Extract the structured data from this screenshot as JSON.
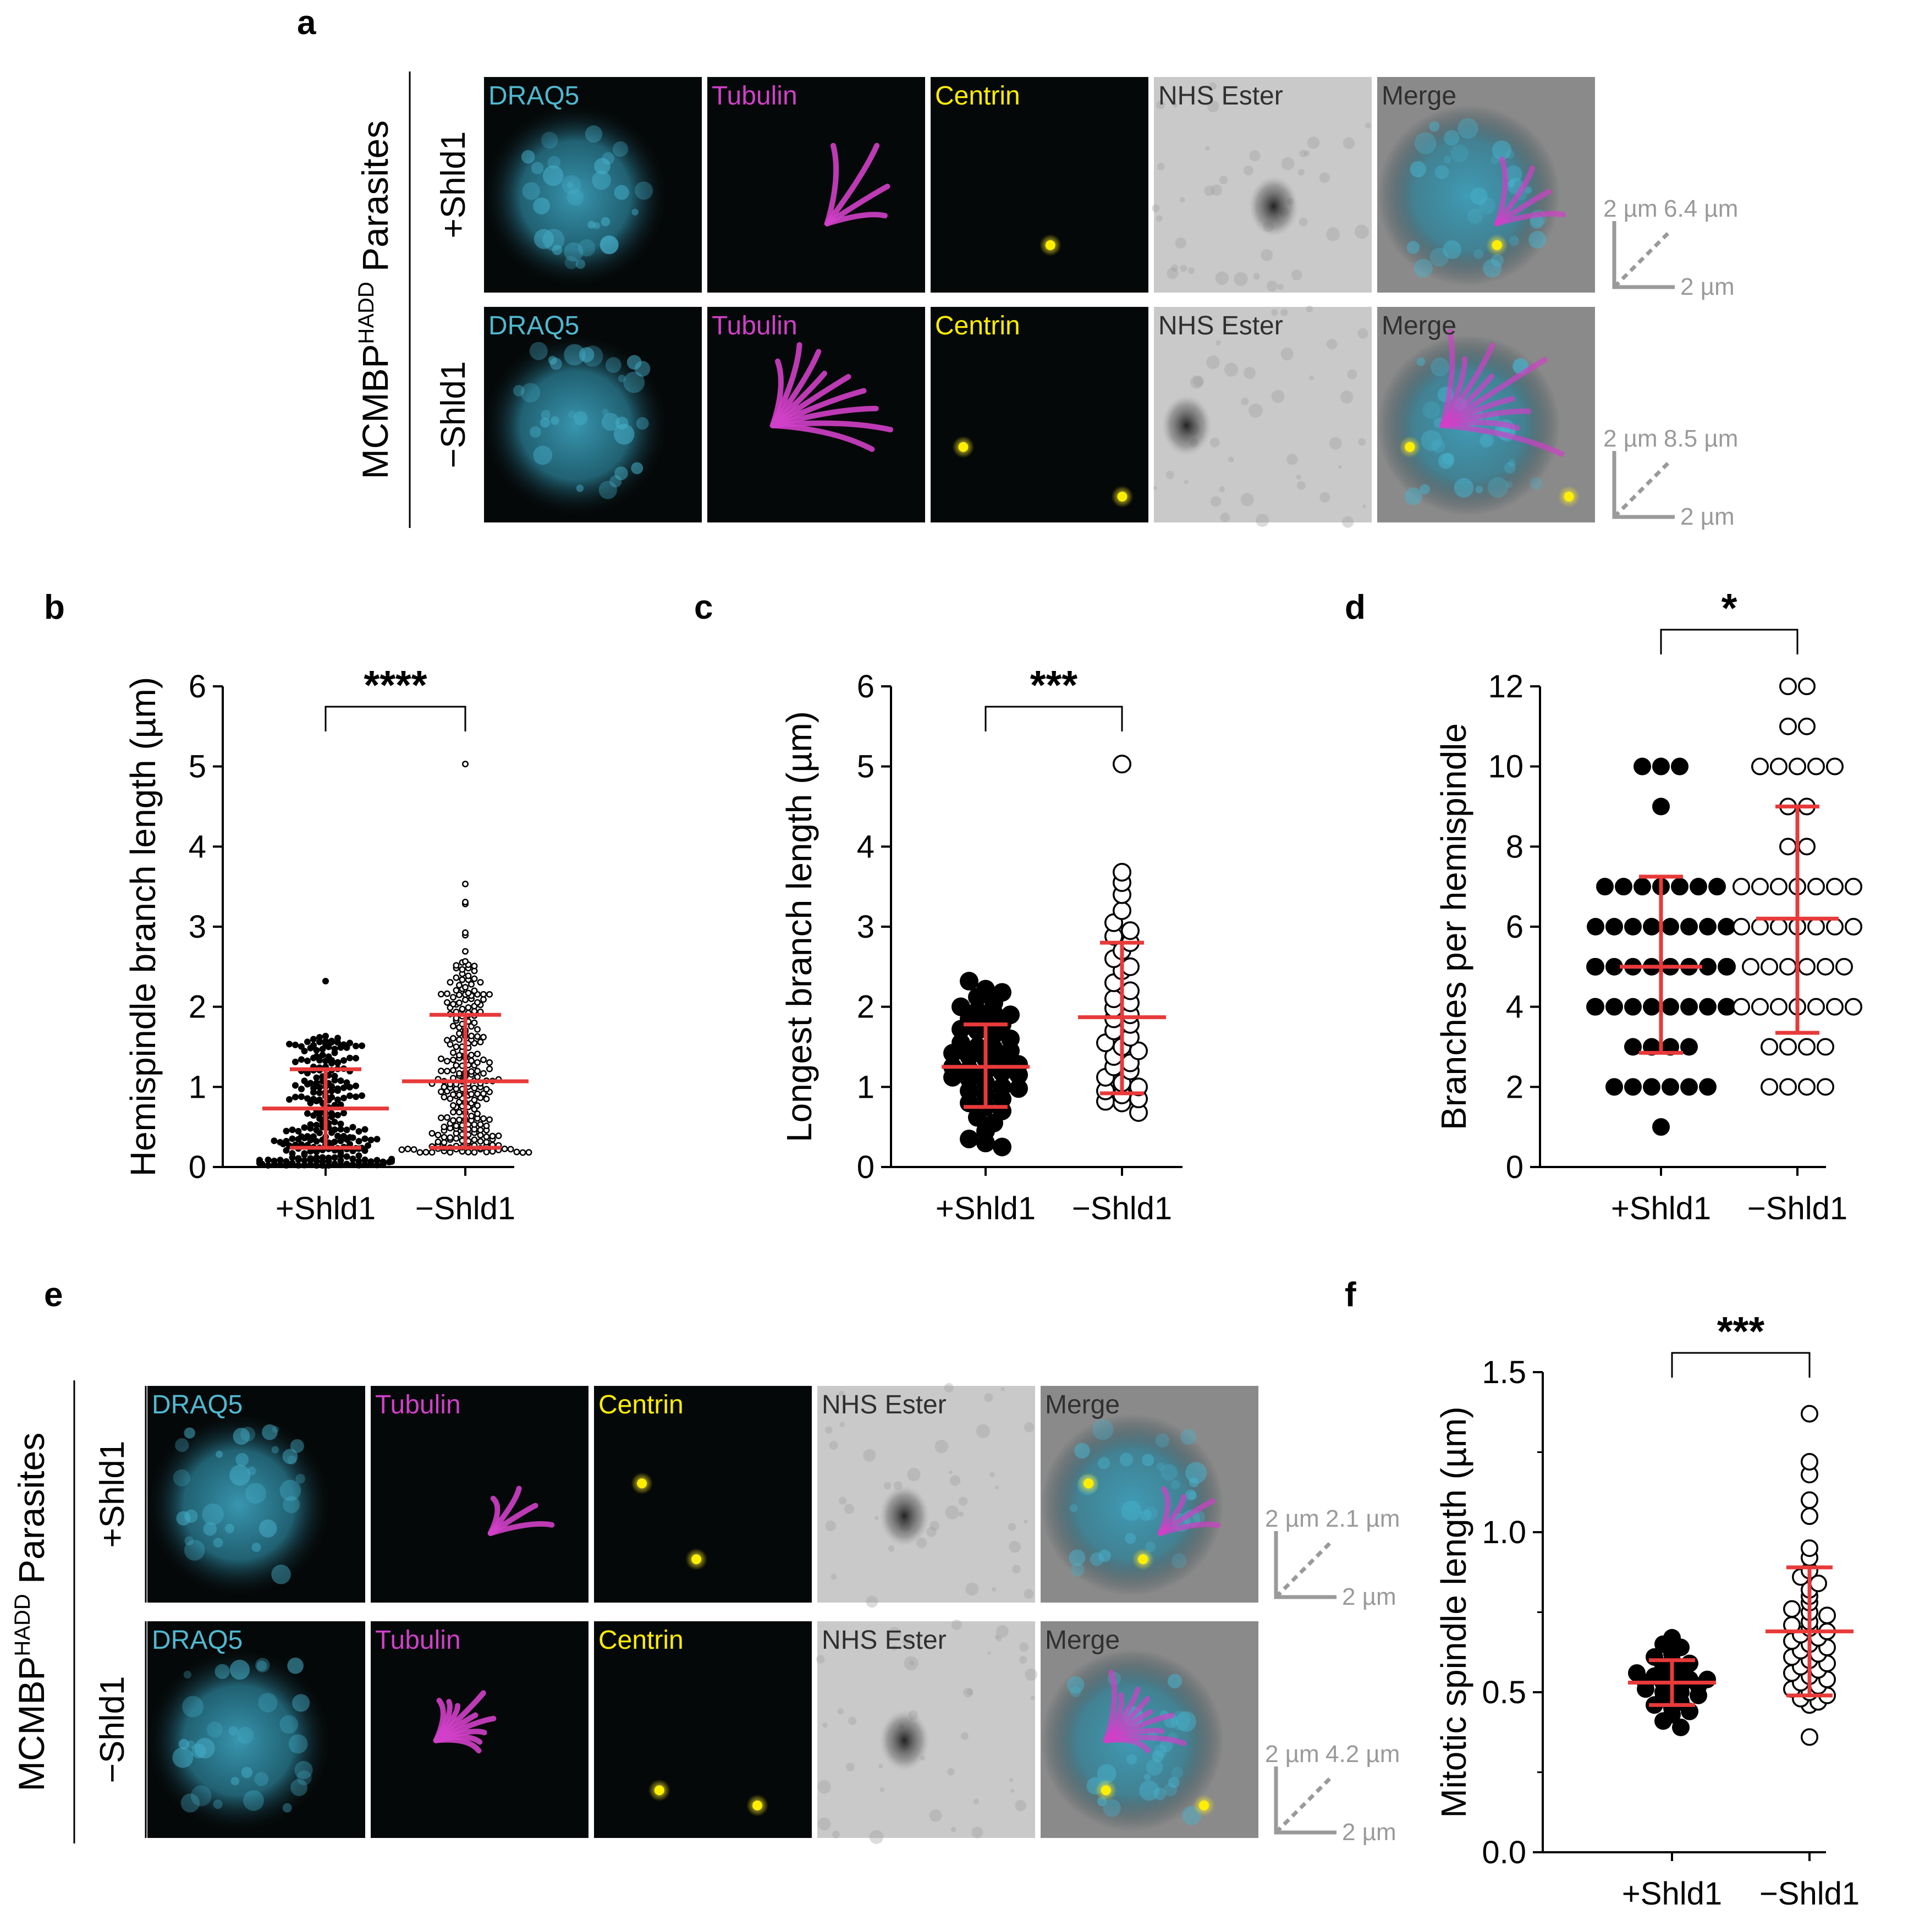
{
  "panels": {
    "a": {
      "label": "a",
      "strain_prefix": "MCMBP",
      "strain_superscript": "HADD",
      "strain_suffix": " Parasites",
      "rows": [
        {
          "condition": "+Shld1",
          "scale_left": "2 µm",
          "scale_diag": "6.4 µm",
          "scale_bottom": "2 µm"
        },
        {
          "condition": "−Shld1",
          "scale_left": "2 µm",
          "scale_diag": "8.5 µm",
          "scale_bottom": "2 µm"
        }
      ],
      "channels": [
        "DRAQ5",
        "Tubulin",
        "Centrin",
        "NHS Ester",
        "Merge"
      ]
    },
    "e": {
      "label": "e",
      "strain_prefix": "MCMBP",
      "strain_superscript": "HADD",
      "strain_suffix": " Parasites",
      "rows": [
        {
          "condition": "+Shld1",
          "scale_left": "2 µm",
          "scale_diag": "2.1 µm",
          "scale_bottom": "2 µm"
        },
        {
          "condition": "−Shld1",
          "scale_left": "2 µm",
          "scale_diag": "4.2 µm",
          "scale_bottom": "2 µm"
        }
      ],
      "channels": [
        "DRAQ5",
        "Tubulin",
        "Centrin",
        "NHS Ester",
        "Merge"
      ]
    }
  },
  "colors": {
    "draq5": "#4fb8d0",
    "tubulin": "#d040c8",
    "centrin": "#ffee00",
    "nhs_text": "#303030",
    "error_bar": "#e83a3a"
  },
  "chart_data": [
    {
      "panel": "b",
      "type": "scatter",
      "ylabel": "Hemispindle branch length (µm)",
      "categories": [
        "+Shld1",
        "−Shld1"
      ],
      "ylim": [
        0,
        6
      ],
      "yticks": [
        0,
        1,
        2,
        3,
        4,
        5,
        6
      ],
      "significance": "****",
      "series": [
        {
          "category": "+Shld1",
          "marker": "filled",
          "mean": 0.73,
          "sd_low": 0.24,
          "sd_high": 1.22,
          "max": 2.32,
          "min": 0.02,
          "n": 260
        },
        {
          "category": "−Shld1",
          "marker": "open",
          "mean": 1.07,
          "sd_low": 0.24,
          "sd_high": 1.9,
          "max": 5.03,
          "min": 0.18,
          "n": 240
        }
      ]
    },
    {
      "panel": "c",
      "type": "scatter",
      "ylabel": "Longest branch  length (µm)",
      "categories": [
        "+Shld1",
        "−Shld1"
      ],
      "ylim": [
        0,
        6
      ],
      "yticks": [
        0,
        1,
        2,
        3,
        4,
        5,
        6
      ],
      "significance": "***",
      "series": [
        {
          "category": "+Shld1",
          "marker": "filled",
          "mean": 1.25,
          "sd_low": 0.75,
          "sd_high": 1.78,
          "values": [
            2.32,
            2.22,
            2.18,
            2.12,
            2.05,
            2.0,
            1.95,
            1.92,
            1.9,
            1.85,
            1.82,
            1.78,
            1.72,
            1.7,
            1.65,
            1.6,
            1.55,
            1.5,
            1.48,
            1.45,
            1.42,
            1.38,
            1.35,
            1.3,
            1.28,
            1.25,
            1.22,
            1.2,
            1.18,
            1.15,
            1.12,
            1.1,
            1.05,
            1.0,
            0.98,
            0.95,
            0.9,
            0.85,
            0.8,
            0.75,
            0.7,
            0.62,
            0.55,
            0.45,
            0.35,
            0.3,
            0.25
          ]
        },
        {
          "category": "−Shld1",
          "marker": "open",
          "mean": 1.87,
          "sd_low": 0.92,
          "sd_high": 2.8,
          "values": [
            5.03,
            3.68,
            3.55,
            3.4,
            3.2,
            3.05,
            2.95,
            2.88,
            2.8,
            2.7,
            2.6,
            2.5,
            2.45,
            2.3,
            2.2,
            2.1,
            2.05,
            1.98,
            1.9,
            1.85,
            1.78,
            1.7,
            1.62,
            1.55,
            1.5,
            1.45,
            1.38,
            1.3,
            1.25,
            1.2,
            1.12,
            1.05,
            1.0,
            0.95,
            0.9,
            0.85,
            0.82,
            0.8,
            0.68
          ]
        }
      ]
    },
    {
      "panel": "d",
      "type": "scatter",
      "ylabel": "Branches per hemispindle",
      "categories": [
        "+Shld1",
        "−Shld1"
      ],
      "ylim": [
        0,
        12
      ],
      "yticks": [
        0,
        2,
        4,
        6,
        8,
        10,
        12
      ],
      "significance": "*",
      "series": [
        {
          "category": "+Shld1",
          "marker": "filled",
          "mean": 5.0,
          "sd_low": 2.85,
          "sd_high": 7.25,
          "counts": {
            "1": 1,
            "2": 6,
            "3": 4,
            "4": 10,
            "5": 10,
            "6": 8,
            "7": 7,
            "9": 1,
            "10": 3
          }
        },
        {
          "category": "−Shld1",
          "marker": "open",
          "mean": 6.2,
          "sd_low": 3.35,
          "sd_high": 9.0,
          "counts": {
            "2": 4,
            "3": 4,
            "4": 7,
            "5": 6,
            "6": 7,
            "7": 7,
            "8": 2,
            "9": 2,
            "10": 5,
            "11": 2,
            "12": 2
          }
        }
      ]
    },
    {
      "panel": "f",
      "type": "scatter",
      "ylabel": "Mitotic spindle length (µm)",
      "categories": [
        "+Shld1",
        "−Shld1"
      ],
      "ylim": [
        0,
        1.5
      ],
      "yticks": [
        0.0,
        0.5,
        1.0,
        1.5
      ],
      "yticklabels": [
        "0.0",
        "0.5",
        "1.0",
        "1.5"
      ],
      "significance": "***",
      "series": [
        {
          "category": "+Shld1",
          "marker": "filled",
          "mean": 0.53,
          "sd_low": 0.46,
          "sd_high": 0.6,
          "values": [
            0.67,
            0.65,
            0.64,
            0.62,
            0.61,
            0.6,
            0.59,
            0.58,
            0.57,
            0.56,
            0.55,
            0.55,
            0.54,
            0.54,
            0.53,
            0.53,
            0.52,
            0.52,
            0.51,
            0.5,
            0.5,
            0.49,
            0.48,
            0.47,
            0.46,
            0.45,
            0.44,
            0.43,
            0.41,
            0.39
          ]
        },
        {
          "category": "−Shld1",
          "marker": "open",
          "mean": 0.69,
          "sd_low": 0.49,
          "sd_high": 0.89,
          "values": [
            1.37,
            1.22,
            1.18,
            1.1,
            1.05,
            0.95,
            0.92,
            0.88,
            0.86,
            0.84,
            0.82,
            0.8,
            0.78,
            0.76,
            0.75,
            0.74,
            0.72,
            0.71,
            0.7,
            0.69,
            0.68,
            0.67,
            0.66,
            0.65,
            0.64,
            0.63,
            0.62,
            0.61,
            0.6,
            0.59,
            0.58,
            0.57,
            0.56,
            0.55,
            0.54,
            0.53,
            0.52,
            0.51,
            0.5,
            0.49,
            0.48,
            0.47,
            0.46,
            0.36
          ]
        }
      ]
    }
  ]
}
